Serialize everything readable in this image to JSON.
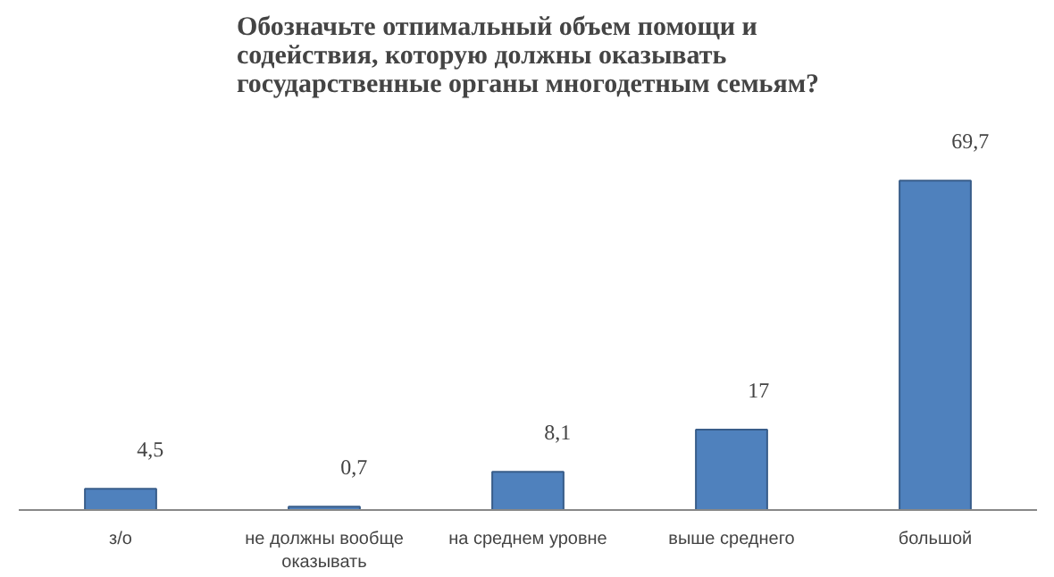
{
  "chart_data": {
    "type": "bar",
    "title": "Обозначьте отпимальный объем помощи и содействия, которую должны оказывать государственные органы многодетным семьям?",
    "categories": [
      "з/о",
      "не должны вообще оказывать",
      "на среднем уровне",
      "выше среднего",
      "большой"
    ],
    "values": [
      4.5,
      0.7,
      8.1,
      17,
      69.7
    ],
    "value_labels": [
      "4,5",
      "0,7",
      "8,1",
      "17",
      "69,7"
    ],
    "color": "#4f81bd",
    "tick_labels": "x",
    "grid": false
  }
}
